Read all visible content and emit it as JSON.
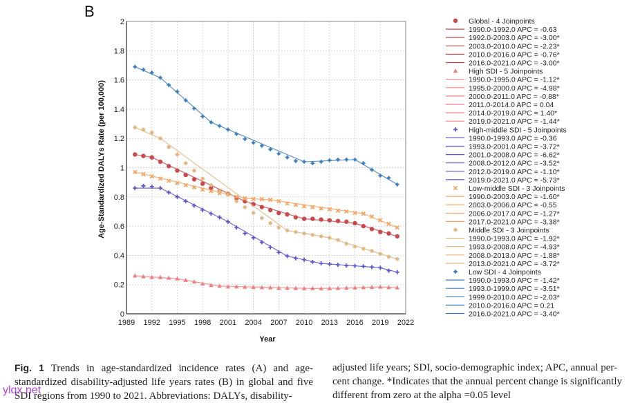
{
  "panel_label": "B",
  "caption": {
    "fig_label": "Fig. 1",
    "left_text": "Trends in age-standardized incidence rates (A) and age-standardized disability-adjusted life years rates (B) in global and five SDI regions from 1990 to 2021. Abbreviations: DALYs, disability-",
    "right_text": "adjusted life years; SDI, socio-demographic index; APC, annual per-cent change. *Indicates that the annual percent change is significantly different from zero at the alpha =0.05 level"
  },
  "watermark": "ylqx.net",
  "chart_data": {
    "type": "line",
    "title": "",
    "xlabel": "Year",
    "ylabel": "Age-Standardized DALYs Rate (per 100,000)",
    "xlim": [
      1989,
      2022
    ],
    "ylim": [
      0,
      2
    ],
    "xticks": [
      1989,
      1992,
      1995,
      1998,
      2001,
      2004,
      2007,
      2010,
      2013,
      2016,
      2019,
      2022
    ],
    "yticks": [
      0,
      0.2,
      0.4,
      0.6,
      0.8,
      1,
      1.2,
      1.4,
      1.6,
      1.8,
      2
    ],
    "ytick_labels": [
      "0",
      "0.2",
      "0.4",
      "0.6",
      "0.8",
      "1",
      "1.2",
      "1.4",
      "1.6",
      "1.8",
      "2"
    ],
    "grid": true,
    "legend_position": "right",
    "x": [
      1990,
      1991,
      1992,
      1993,
      1994,
      1995,
      1996,
      1997,
      1998,
      1999,
      2000,
      2001,
      2002,
      2003,
      2004,
      2005,
      2006,
      2007,
      2008,
      2009,
      2010,
      2011,
      2012,
      2013,
      2014,
      2015,
      2016,
      2017,
      2018,
      2019,
      2020,
      2021
    ],
    "series": [
      {
        "name": "Global - 4 Joinpoints",
        "color": "#c9484a",
        "marker": "circle",
        "values": [
          1.09,
          1.08,
          1.07,
          1.04,
          1.01,
          0.98,
          0.95,
          0.92,
          0.89,
          0.86,
          0.84,
          0.82,
          0.79,
          0.77,
          0.75,
          0.73,
          0.71,
          0.69,
          0.68,
          0.66,
          0.65,
          0.65,
          0.645,
          0.64,
          0.635,
          0.63,
          0.62,
          0.6,
          0.58,
          0.56,
          0.55,
          0.53
        ],
        "segments": [
          {
            "label": "1990.0-1992.0 APC  = -0.63",
            "start": 1990,
            "end": 1992
          },
          {
            "label": "1992.0-2003.0 APC  = -3.00*",
            "start": 1992,
            "end": 2003
          },
          {
            "label": "2003.0-2010.0 APC  = -2.23*",
            "start": 2003,
            "end": 2010
          },
          {
            "label": "2010.0-2016.0 APC  = -0.76*",
            "start": 2010,
            "end": 2016
          },
          {
            "label": "2016.0-2021.0 APC  = -3.00*",
            "start": 2016,
            "end": 2021
          }
        ]
      },
      {
        "name": "High SDI - 5 Joinpoints",
        "color": "#f08080",
        "marker": "triangle",
        "values": [
          0.26,
          0.255,
          0.25,
          0.25,
          0.245,
          0.24,
          0.23,
          0.22,
          0.205,
          0.195,
          0.19,
          0.185,
          0.185,
          0.183,
          0.182,
          0.18,
          0.179,
          0.177,
          0.176,
          0.175,
          0.174,
          0.173,
          0.173,
          0.174,
          0.175,
          0.177,
          0.178,
          0.18,
          0.182,
          0.184,
          0.18,
          0.179
        ],
        "segments": [
          {
            "label": "1990.0-1995.0 APC  = -1.12*",
            "start": 1990,
            "end": 1995
          },
          {
            "label": "1995.0-2000.0 APC  = -4.98*",
            "start": 1995,
            "end": 2000
          },
          {
            "label": "2000.0-2011.0 APC  = -0.88*",
            "start": 2000,
            "end": 2011
          },
          {
            "label": "2011.0-2014.0 APC  = 0.04",
            "start": 2011,
            "end": 2014
          },
          {
            "label": "2014.0-2019.0 APC  = 1.40*",
            "start": 2014,
            "end": 2019
          },
          {
            "label": "2019.0-2021.0 APC  = -1.44*",
            "start": 2019,
            "end": 2021
          }
        ]
      },
      {
        "name": "High-middle SDI - 5 Joinpoints",
        "color": "#5b54d0",
        "marker": "plus",
        "values": [
          0.86,
          0.875,
          0.87,
          0.86,
          0.83,
          0.8,
          0.77,
          0.74,
          0.71,
          0.685,
          0.66,
          0.63,
          0.59,
          0.55,
          0.52,
          0.49,
          0.455,
          0.42,
          0.395,
          0.38,
          0.37,
          0.355,
          0.345,
          0.34,
          0.335,
          0.33,
          0.328,
          0.325,
          0.32,
          0.315,
          0.295,
          0.285
        ],
        "segments": [
          {
            "label": "1990.0-1993.0 APC  = -0.36",
            "start": 1990,
            "end": 1993
          },
          {
            "label": "1993.0-2001.0 APC  = -3.72*",
            "start": 1993,
            "end": 2001
          },
          {
            "label": "2001.0-2008.0 APC  = -6.62*",
            "start": 2001,
            "end": 2008
          },
          {
            "label": "2008.0-2012.0 APC  = -3.52*",
            "start": 2008,
            "end": 2012
          },
          {
            "label": "2012.0-2019.0 APC  = -1.10*",
            "start": 2012,
            "end": 2019
          },
          {
            "label": "2019.0-2021.0 APC  = -5.73*",
            "start": 2019,
            "end": 2021
          }
        ]
      },
      {
        "name": "Low-middle SDI - 3 Joinpoints",
        "color": "#f4a460",
        "marker": "x",
        "values": [
          0.97,
          0.955,
          0.94,
          0.925,
          0.91,
          0.895,
          0.88,
          0.865,
          0.85,
          0.84,
          0.825,
          0.82,
          0.8,
          0.79,
          0.785,
          0.785,
          0.78,
          0.77,
          0.755,
          0.745,
          0.735,
          0.73,
          0.72,
          0.715,
          0.705,
          0.7,
          0.69,
          0.685,
          0.665,
          0.64,
          0.615,
          0.59
        ],
        "segments": [
          {
            "label": "1990.0-2003.0 APC  = -1.60*",
            "start": 1990,
            "end": 2003
          },
          {
            "label": "2003.0-2006.0 APC  = -0.55",
            "start": 2003,
            "end": 2006
          },
          {
            "label": "2006.0-2017.0 APC  = -1.27*",
            "start": 2006,
            "end": 2017
          },
          {
            "label": "2017.0-2021.0 APC  = -3.38*",
            "start": 2017,
            "end": 2021
          }
        ]
      },
      {
        "name": "Middle SDI - 3 Joinpoints",
        "color": "#e2b57e",
        "marker": "star",
        "values": [
          1.275,
          1.26,
          1.24,
          1.2,
          1.14,
          1.09,
          1.03,
          0.98,
          0.925,
          0.88,
          0.84,
          0.815,
          0.77,
          0.73,
          0.69,
          0.655,
          0.62,
          0.59,
          0.57,
          0.56,
          0.55,
          0.54,
          0.53,
          0.52,
          0.505,
          0.48,
          0.46,
          0.445,
          0.43,
          0.41,
          0.39,
          0.375
        ],
        "segments": [
          {
            "label": "1990.0-1993.0 APC  = -1.92*",
            "start": 1990,
            "end": 1993
          },
          {
            "label": "1993.0-2008.0 APC  = -4.93*",
            "start": 1993,
            "end": 2008
          },
          {
            "label": "2008.0-2013.0 APC  = -1.88*",
            "start": 2008,
            "end": 2013
          },
          {
            "label": "2013.0-2021.0 APC  = -3.72*",
            "start": 2013,
            "end": 2021
          }
        ]
      },
      {
        "name": "Low SDI - 4 Joinpoints",
        "color": "#3d7ebf",
        "marker": "diamond",
        "values": [
          1.69,
          1.67,
          1.65,
          1.615,
          1.565,
          1.52,
          1.46,
          1.405,
          1.35,
          1.31,
          1.285,
          1.26,
          1.23,
          1.195,
          1.17,
          1.15,
          1.125,
          1.095,
          1.07,
          1.045,
          1.04,
          1.03,
          1.04,
          1.05,
          1.055,
          1.055,
          1.055,
          1.03,
          0.985,
          0.945,
          0.93,
          0.885
        ],
        "segments": [
          {
            "label": "1990.0-1993.0 APC  = -1.42*",
            "start": 1990,
            "end": 1993
          },
          {
            "label": "1993.0-1999.0 APC  = -3.51*",
            "start": 1993,
            "end": 1999
          },
          {
            "label": "1999.0-2010.0 APC  = -2.03*",
            "start": 1999,
            "end": 2010
          },
          {
            "label": "2010.0-2016.0 APC  = 0.21",
            "start": 2010,
            "end": 2016
          },
          {
            "label": "2016.0-2021.0 APC  = -3.40*",
            "start": 2016,
            "end": 2021
          }
        ]
      }
    ]
  }
}
